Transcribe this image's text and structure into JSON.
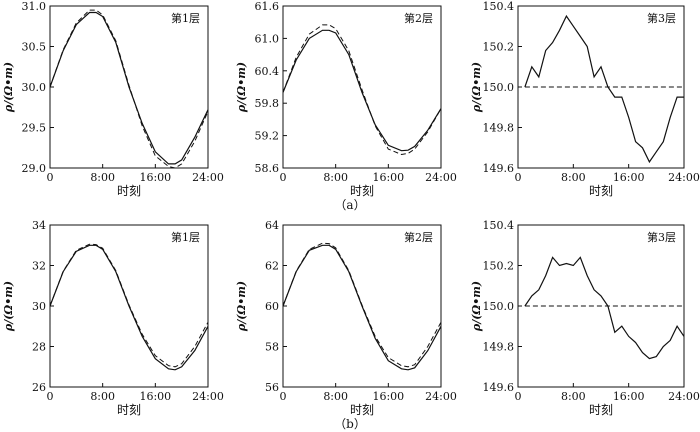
{
  "chart_data": [
    {
      "type": "line",
      "row": "a",
      "tag": "第1层",
      "xlabel": "时刻",
      "ylabel": "ρ/(Ω•m)",
      "x": [
        "0:00",
        "2:00",
        "4:00",
        "6:00",
        "7:00",
        "8:00",
        "10:00",
        "12:00",
        "14:00",
        "16:00",
        "18:00",
        "19:00",
        "20:00",
        "22:00",
        "24:00"
      ],
      "xticks": [
        "0",
        "8:00",
        "16:00",
        "24:00"
      ],
      "yticks": [
        "29.0",
        "29.5",
        "30.0",
        "30.5",
        "31.0"
      ],
      "ylim": [
        29.0,
        31.0
      ],
      "series": [
        {
          "values": [
            30.0,
            30.45,
            30.77,
            30.92,
            30.92,
            30.87,
            30.55,
            30.0,
            29.55,
            29.2,
            29.05,
            29.05,
            29.1,
            29.38,
            29.72
          ],
          "style": "solid"
        },
        {
          "values": [
            30.0,
            30.46,
            30.79,
            30.95,
            30.95,
            30.89,
            30.57,
            30.02,
            29.52,
            29.15,
            29.02,
            29.0,
            29.05,
            29.33,
            29.7
          ],
          "style": "dashed"
        }
      ]
    },
    {
      "type": "line",
      "row": "a",
      "tag": "第2层",
      "xlabel": "时刻",
      "ylabel": "ρ/(Ω•m)",
      "x": [
        "0:00",
        "2:00",
        "4:00",
        "6:00",
        "7:00",
        "8:00",
        "10:00",
        "12:00",
        "14:00",
        "16:00",
        "18:00",
        "19:00",
        "20:00",
        "22:00",
        "24:00"
      ],
      "xticks": [
        "0",
        "8:00",
        "16:00",
        "24:00"
      ],
      "yticks": [
        "58.6",
        "59.2",
        "59.8",
        "60.4",
        "61.0",
        "61.6"
      ],
      "ylim": [
        58.6,
        61.6
      ],
      "series": [
        {
          "values": [
            60.0,
            60.6,
            61.0,
            61.15,
            61.15,
            61.1,
            60.7,
            60.0,
            59.4,
            59.02,
            58.92,
            58.93,
            59.0,
            59.3,
            59.7
          ],
          "style": "solid"
        },
        {
          "values": [
            60.0,
            60.65,
            61.08,
            61.25,
            61.25,
            61.18,
            60.77,
            60.05,
            59.38,
            58.95,
            58.85,
            58.87,
            58.95,
            59.27,
            59.7
          ],
          "style": "dashed"
        }
      ]
    },
    {
      "type": "line",
      "row": "a",
      "tag": "第3层",
      "xlabel": "时刻",
      "ylabel": "ρ/(Ω•m)",
      "x": [
        "1:00",
        "2:00",
        "3:00",
        "4:00",
        "5:00",
        "6:00",
        "7:00",
        "8:00",
        "9:00",
        "10:00",
        "11:00",
        "12:00",
        "13:00",
        "14:00",
        "15:00",
        "16:00",
        "17:00",
        "18:00",
        "19:00",
        "20:00",
        "21:00",
        "22:00",
        "23:00",
        "24:00"
      ],
      "xticks": [
        "0",
        "8:00",
        "16:00",
        "24:00"
      ],
      "yticks": [
        "149.6",
        "149.8",
        "150.0",
        "150.2",
        "150.4"
      ],
      "ylim": [
        149.6,
        150.4
      ],
      "series": [
        {
          "values": [
            150.0,
            150.1,
            150.05,
            150.18,
            150.22,
            150.28,
            150.35,
            150.3,
            150.25,
            150.2,
            150.05,
            150.1,
            150.0,
            149.95,
            149.95,
            149.85,
            149.73,
            149.7,
            149.63,
            149.68,
            149.73,
            149.85,
            149.95,
            149.95
          ],
          "style": "solid"
        },
        {
          "values": [
            150.0,
            150.0
          ],
          "x": [
            "1:00",
            "24:00"
          ],
          "style": "dashed"
        }
      ]
    },
    {
      "type": "line",
      "row": "b",
      "tag": "第1层",
      "xlabel": "时刻",
      "ylabel": "ρ/(Ω•m)",
      "x": [
        "0:00",
        "2:00",
        "4:00",
        "6:00",
        "7:00",
        "8:00",
        "10:00",
        "12:00",
        "14:00",
        "16:00",
        "18:00",
        "19:00",
        "20:00",
        "22:00",
        "24:00"
      ],
      "xticks": [
        "0",
        "8:00",
        "16:00",
        "24:00"
      ],
      "yticks": [
        "26",
        "28",
        "30",
        "32",
        "34"
      ],
      "ylim": [
        26,
        34
      ],
      "series": [
        {
          "values": [
            30.0,
            31.7,
            32.7,
            33.0,
            33.0,
            32.8,
            31.7,
            30.0,
            28.5,
            27.4,
            26.9,
            26.85,
            27.0,
            27.8,
            29.0
          ],
          "style": "solid"
        },
        {
          "values": [
            30.0,
            31.72,
            32.75,
            33.05,
            33.03,
            32.85,
            31.75,
            30.05,
            28.6,
            27.55,
            27.05,
            27.0,
            27.15,
            28.0,
            29.2
          ],
          "style": "dashed"
        }
      ]
    },
    {
      "type": "line",
      "row": "b",
      "tag": "第2层",
      "xlabel": "时刻",
      "ylabel": "ρ/(Ω•m)",
      "x": [
        "0:00",
        "2:00",
        "4:00",
        "6:00",
        "7:00",
        "8:00",
        "10:00",
        "12:00",
        "14:00",
        "16:00",
        "18:00",
        "19:00",
        "20:00",
        "22:00",
        "24:00"
      ],
      "xticks": [
        "0",
        "8:00",
        "16:00",
        "24:00"
      ],
      "yticks": [
        "56",
        "58",
        "60",
        "62",
        "64"
      ],
      "ylim": [
        56,
        64
      ],
      "series": [
        {
          "values": [
            60.0,
            61.7,
            62.75,
            63.0,
            63.0,
            62.8,
            61.7,
            60.0,
            58.4,
            57.3,
            56.9,
            56.85,
            56.95,
            57.8,
            59.0
          ],
          "style": "solid"
        },
        {
          "values": [
            60.0,
            61.72,
            62.8,
            63.1,
            63.08,
            62.87,
            61.75,
            60.05,
            58.5,
            57.45,
            57.05,
            57.0,
            57.1,
            58.0,
            59.2
          ],
          "style": "dashed"
        }
      ]
    },
    {
      "type": "line",
      "row": "b",
      "tag": "第3层",
      "xlabel": "时刻",
      "ylabel": "ρ/(Ω•m)",
      "x": [
        "1:00",
        "2:00",
        "3:00",
        "4:00",
        "5:00",
        "6:00",
        "7:00",
        "8:00",
        "9:00",
        "10:00",
        "11:00",
        "12:00",
        "13:00",
        "14:00",
        "15:00",
        "16:00",
        "17:00",
        "18:00",
        "19:00",
        "20:00",
        "21:00",
        "22:00",
        "23:00",
        "24:00"
      ],
      "xticks": [
        "0",
        "8:00",
        "16:00",
        "24:00"
      ],
      "yticks": [
        "149.6",
        "149.8",
        "150.0",
        "150.2",
        "150.4"
      ],
      "ylim": [
        149.6,
        150.4
      ],
      "series": [
        {
          "values": [
            150.0,
            150.05,
            150.08,
            150.15,
            150.24,
            150.2,
            150.21,
            150.2,
            150.24,
            150.15,
            150.08,
            150.05,
            150.0,
            149.87,
            149.9,
            149.85,
            149.82,
            149.77,
            149.74,
            149.75,
            149.8,
            149.83,
            149.9,
            149.85
          ],
          "style": "solid"
        },
        {
          "values": [
            150.0,
            150.0
          ],
          "x": [
            "1:00",
            "24:00"
          ],
          "style": "dashed"
        }
      ]
    }
  ],
  "captions": [
    "（a）",
    "（b）"
  ]
}
